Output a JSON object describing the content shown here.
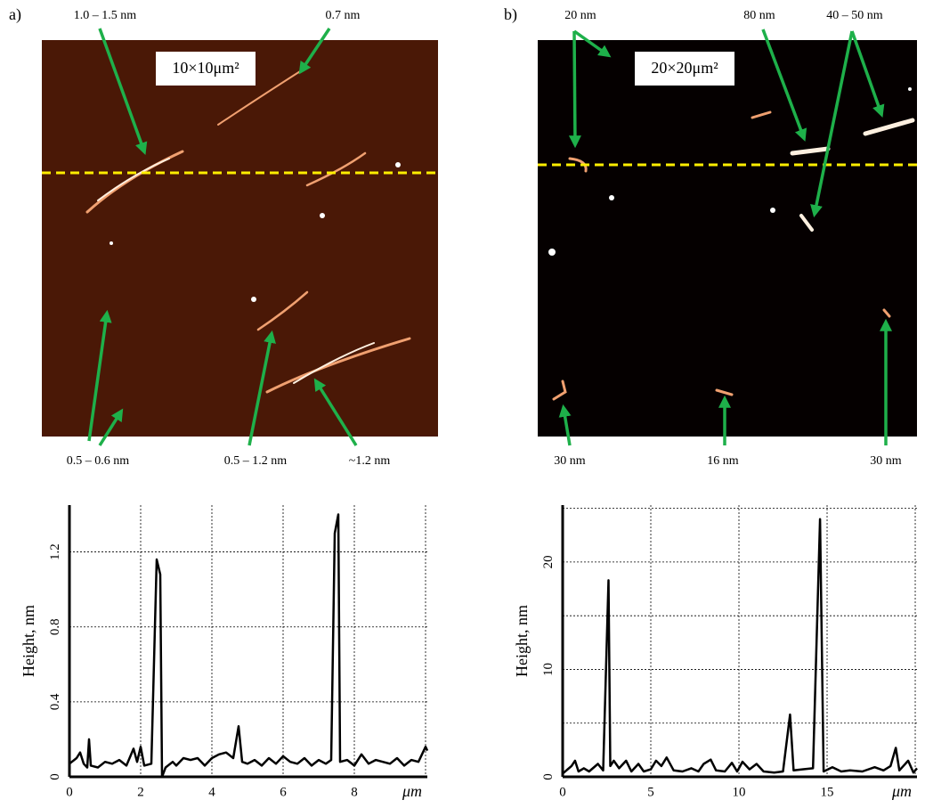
{
  "images": [
    {
      "panel_label": "a)",
      "scale_label": "10×10μm²",
      "annotations": [
        "1.0 – 1.5 nm",
        "0.7 nm",
        "0.5 – 0.6 nm",
        "0.5 – 1.2 nm",
        "~1.2 nm"
      ]
    },
    {
      "panel_label": "b)",
      "scale_label": "20×20μm²",
      "annotations": [
        "20 nm",
        "80 nm",
        "40 – 50 nm",
        "30 nm",
        "16 nm",
        "30 nm"
      ]
    }
  ],
  "chart_data": [
    {
      "type": "line",
      "y_label": "Height, nm",
      "x_label": "μm",
      "x": [
        0,
        0.2,
        0.3,
        0.4,
        0.5,
        0.55,
        0.6,
        0.8,
        1,
        1.2,
        1.4,
        1.6,
        1.8,
        1.9,
        2,
        2.1,
        2.3,
        2.45,
        2.55,
        2.6,
        2.7,
        2.9,
        3,
        3.2,
        3.4,
        3.6,
        3.8,
        4,
        4.2,
        4.4,
        4.6,
        4.75,
        4.85,
        5,
        5.2,
        5.4,
        5.6,
        5.8,
        6,
        6.2,
        6.4,
        6.6,
        6.8,
        7,
        7.2,
        7.35,
        7.45,
        7.55,
        7.6,
        7.8,
        8,
        8.2,
        8.4,
        8.6,
        8.8,
        9,
        9.2,
        9.4,
        9.6,
        9.8,
        10,
        10.05
      ],
      "series": [
        {
          "color": "#000000",
          "values": [
            0.07,
            0.1,
            0.13,
            0.07,
            0.05,
            0.2,
            0.06,
            0.05,
            0.08,
            0.07,
            0.09,
            0.06,
            0.15,
            0.08,
            0.16,
            0.06,
            0.07,
            1.16,
            1.08,
            0.0,
            0.05,
            0.08,
            0.06,
            0.1,
            0.09,
            0.1,
            0.06,
            0.1,
            0.12,
            0.13,
            0.1,
            0.27,
            0.08,
            0.07,
            0.09,
            0.06,
            0.1,
            0.07,
            0.11,
            0.08,
            0.07,
            0.1,
            0.06,
            0.09,
            0.07,
            0.09,
            1.3,
            1.4,
            0.08,
            0.09,
            0.06,
            0.12,
            0.07,
            0.09,
            0.08,
            0.07,
            0.1,
            0.06,
            0.09,
            0.08,
            0.16,
            0.14
          ]
        }
      ],
      "xlim": [
        0,
        10.05
      ],
      "xticks": [
        0,
        2,
        4,
        6,
        8
      ],
      "minor_xticks": [
        10
      ],
      "ylim": [
        0,
        1.45
      ],
      "yticks": [
        0,
        0.4,
        0.8,
        1.2
      ],
      "minor_yticks": [],
      "grid": true
    },
    {
      "type": "line",
      "y_label": "Height, nm",
      "x_label": "μm",
      "x": [
        0,
        0.5,
        0.7,
        0.9,
        1.2,
        1.5,
        2,
        2.3,
        2.6,
        2.7,
        2.9,
        3.2,
        3.6,
        3.9,
        4.3,
        4.6,
        5,
        5.3,
        5.6,
        5.9,
        6.3,
        6.8,
        7.3,
        7.7,
        8,
        8.4,
        8.7,
        9.2,
        9.6,
        9.9,
        10.2,
        10.6,
        11,
        11.4,
        12,
        12.5,
        12.9,
        13.1,
        13.6,
        14.2,
        14.6,
        14.8,
        15.3,
        15.8,
        16.3,
        17,
        17.7,
        18.2,
        18.6,
        18.9,
        19.1,
        19.6,
        19.9,
        20.1
      ],
      "series": [
        {
          "color": "#000000",
          "values": [
            0.3,
            1.0,
            1.5,
            0.5,
            0.8,
            0.5,
            1.2,
            0.6,
            18.3,
            1.0,
            1.5,
            0.8,
            1.5,
            0.5,
            1.2,
            0.5,
            0.7,
            1.5,
            1.0,
            1.8,
            0.6,
            0.5,
            0.8,
            0.5,
            1.2,
            1.6,
            0.6,
            0.5,
            1.3,
            0.5,
            1.4,
            0.7,
            1.2,
            0.5,
            0.4,
            0.5,
            5.8,
            0.6,
            0.7,
            0.8,
            24,
            0.5,
            0.9,
            0.5,
            0.6,
            0.5,
            0.9,
            0.6,
            1.0,
            2.7,
            0.6,
            1.5,
            0.4,
            0.8
          ]
        }
      ],
      "xlim": [
        0,
        20.1
      ],
      "xticks": [
        0,
        5,
        10,
        15
      ],
      "minor_xticks": [
        20
      ],
      "ylim": [
        0,
        25.3
      ],
      "yticks": [
        0,
        10,
        20
      ],
      "minor_yticks": [
        5,
        15,
        25
      ],
      "grid": true
    }
  ]
}
